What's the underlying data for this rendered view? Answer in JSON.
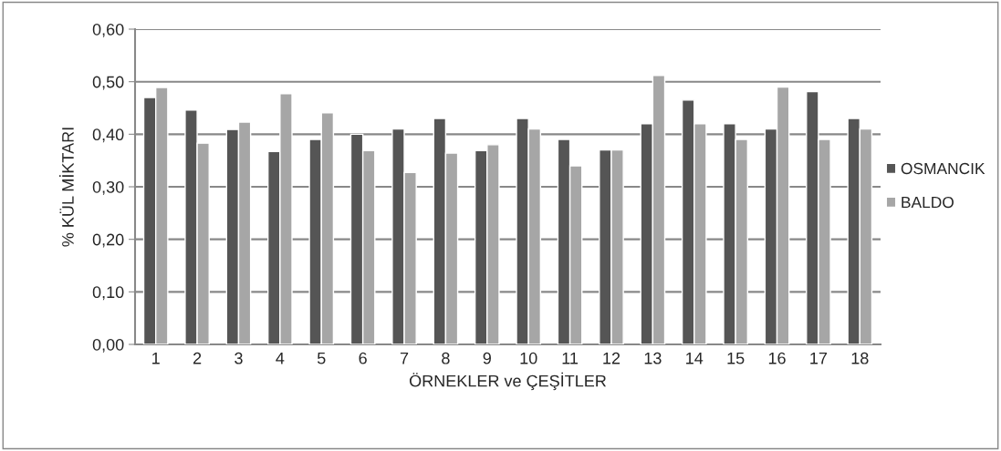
{
  "chart_data": {
    "type": "bar",
    "xlabel": "ÖRNEKLER ve ÇEŞİTLER",
    "ylabel": "% KÜL MİKTARI",
    "categories": [
      "1",
      "2",
      "3",
      "4",
      "5",
      "6",
      "7",
      "8",
      "9",
      "10",
      "11",
      "12",
      "13",
      "14",
      "15",
      "16",
      "17",
      "18"
    ],
    "series": [
      {
        "name": "OSMANCIK",
        "color": "#555555",
        "values": [
          0.47,
          0.446,
          0.409,
          0.367,
          0.39,
          0.4,
          0.41,
          0.43,
          0.369,
          0.43,
          0.39,
          0.37,
          0.42,
          0.465,
          0.42,
          0.41,
          0.481,
          0.43
        ]
      },
      {
        "name": "BALDO",
        "color": "#a6a6a6",
        "values": [
          0.489,
          0.383,
          0.423,
          0.477,
          0.441,
          0.369,
          0.327,
          0.364,
          0.38,
          0.41,
          0.34,
          0.37,
          0.512,
          0.42,
          0.39,
          0.49,
          0.39,
          0.41
        ]
      }
    ],
    "ylim": [
      0,
      0.6
    ],
    "yticks": [
      {
        "value": 0,
        "label": "0,00"
      },
      {
        "value": 0.1,
        "label": "0,10"
      },
      {
        "value": 0.2,
        "label": "0,20"
      },
      {
        "value": 0.3,
        "label": "0,30"
      },
      {
        "value": 0.4,
        "label": "0,40"
      },
      {
        "value": 0.5,
        "label": "0,50"
      },
      {
        "value": 0.6,
        "label": "0,60"
      }
    ],
    "grid": "y",
    "legend": "right"
  }
}
